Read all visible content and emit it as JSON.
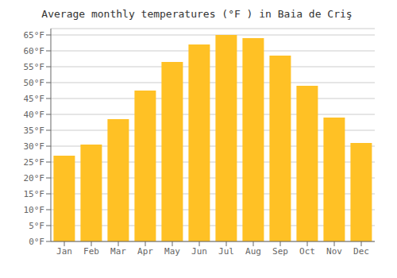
{
  "chart_data": {
    "type": "bar",
    "title": "Average monthly temperatures (°F ) in Baia de Criş",
    "categories": [
      "Jan",
      "Feb",
      "Mar",
      "Apr",
      "May",
      "Jun",
      "Jul",
      "Aug",
      "Sep",
      "Oct",
      "Nov",
      "Dec"
    ],
    "values": [
      27,
      30.5,
      38.5,
      47.5,
      56.5,
      62,
      65,
      64,
      58.5,
      49,
      39,
      31
    ],
    "color": "#FFC125",
    "ylim": [
      0,
      67
    ],
    "yticks": [
      {
        "value": 0,
        "label": "0°F"
      },
      {
        "value": 5,
        "label": "5°F"
      },
      {
        "value": 10,
        "label": "10°F"
      },
      {
        "value": 15,
        "label": "15°F"
      },
      {
        "value": 20,
        "label": "20°F"
      },
      {
        "value": 25,
        "label": "25°F"
      },
      {
        "value": 30,
        "label": "30°F"
      },
      {
        "value": 35,
        "label": "35°F"
      },
      {
        "value": 40,
        "label": "40°F"
      },
      {
        "value": 45,
        "label": "45°F"
      },
      {
        "value": 50,
        "label": "50°F"
      },
      {
        "value": 55,
        "label": "55°F"
      },
      {
        "value": 60,
        "label": "60°F"
      },
      {
        "value": 65,
        "label": "65°F"
      }
    ],
    "grid": true
  }
}
